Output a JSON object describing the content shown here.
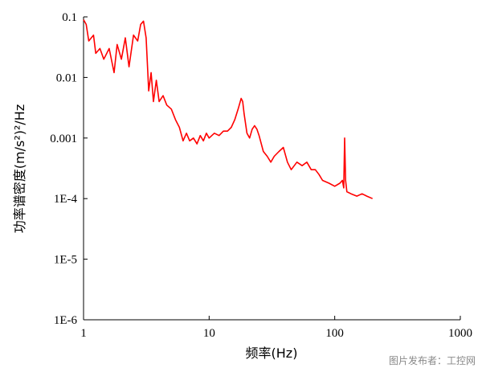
{
  "chart_data": {
    "type": "line",
    "xscale": "log",
    "yscale": "log",
    "xlim": [
      1,
      1000
    ],
    "ylim": [
      1e-06,
      0.1
    ],
    "xlabel": "频率(Hz)",
    "ylabel": "功率谱密度(m/s²)²/Hz",
    "x_ticks": [
      {
        "value": 1,
        "label": "1"
      },
      {
        "value": 10,
        "label": "10"
      },
      {
        "value": 100,
        "label": "100"
      },
      {
        "value": 1000,
        "label": "1000"
      }
    ],
    "y_ticks": [
      {
        "value": 0.1,
        "label": "0.1"
      },
      {
        "value": 0.01,
        "label": "0.01"
      },
      {
        "value": 0.001,
        "label": "0.001"
      },
      {
        "value": 0.0001,
        "label": "1E-4"
      },
      {
        "value": 1e-05,
        "label": "1E-5"
      },
      {
        "value": 1e-06,
        "label": "1E-6"
      }
    ],
    "grid": false,
    "line_color": "#ff0000",
    "series": [
      {
        "x": [
          1.0,
          1.05,
          1.1,
          1.2,
          1.25,
          1.35,
          1.45,
          1.6,
          1.75,
          1.85,
          2.0,
          2.15,
          2.3,
          2.5,
          2.7,
          2.85,
          3.0,
          3.15,
          3.3,
          3.45,
          3.6,
          3.8,
          4.0,
          4.3,
          4.6,
          5.0,
          5.4,
          5.8,
          6.2,
          6.6,
          7.0,
          7.5,
          8.0,
          8.5,
          9.0,
          9.5,
          10.0,
          11.0,
          12.0,
          13.0,
          14.0,
          15.0,
          16.0,
          17.0,
          18.0,
          18.5,
          19.0,
          20.0,
          21.0,
          22.0,
          23.0,
          24.0,
          25.0,
          27.0,
          29.0,
          31.0,
          33.0,
          36.0,
          39.0,
          42.0,
          45.0,
          50.0,
          55.0,
          60.0,
          65.0,
          70.0,
          75.0,
          80.0,
          90.0,
          100.0,
          110.0,
          115.0,
          118.0,
          120.0,
          122.0,
          125.0,
          135.0,
          150.0,
          165.0,
          180.0,
          200.0
        ],
        "y": [
          0.09,
          0.075,
          0.04,
          0.05,
          0.025,
          0.03,
          0.02,
          0.03,
          0.012,
          0.035,
          0.02,
          0.045,
          0.015,
          0.05,
          0.04,
          0.075,
          0.085,
          0.045,
          0.006,
          0.012,
          0.004,
          0.009,
          0.004,
          0.005,
          0.0035,
          0.003,
          0.002,
          0.0015,
          0.0009,
          0.0012,
          0.0009,
          0.001,
          0.0008,
          0.0011,
          0.0009,
          0.0012,
          0.001,
          0.0012,
          0.0011,
          0.0013,
          0.0013,
          0.0015,
          0.002,
          0.003,
          0.0045,
          0.004,
          0.0025,
          0.0012,
          0.001,
          0.0014,
          0.0016,
          0.0014,
          0.0011,
          0.0006,
          0.0005,
          0.0004,
          0.0005,
          0.0006,
          0.0007,
          0.0004,
          0.0003,
          0.0004,
          0.00035,
          0.0004,
          0.0003,
          0.0003,
          0.00025,
          0.0002,
          0.00018,
          0.00016,
          0.00018,
          0.0002,
          0.00015,
          0.001,
          0.0002,
          0.00013,
          0.00012,
          0.00011,
          0.00012,
          0.00011,
          0.0001
        ]
      }
    ]
  },
  "watermark": "图片发布者：工控网"
}
